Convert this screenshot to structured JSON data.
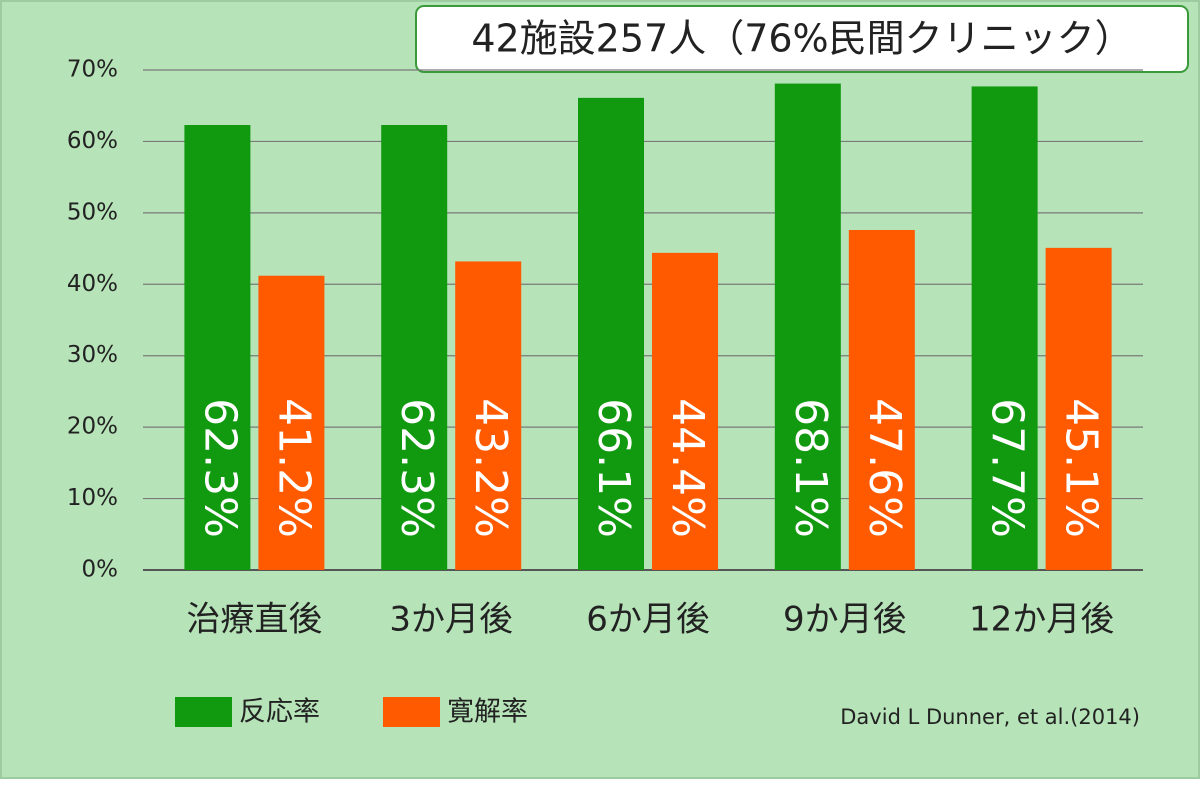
{
  "chart_data": {
    "type": "bar",
    "title": "42施設257人（76%民間クリニック）",
    "categories": [
      "治療直後",
      "3か月後",
      "6か月後",
      "9か月後",
      "12か月後"
    ],
    "series": [
      {
        "name": "反応率",
        "color": "#119a10",
        "values": [
          62.3,
          62.3,
          66.1,
          68.1,
          67.7
        ],
        "value_labels": [
          "62.3%",
          "62.3%",
          "66.1%",
          "68.1%",
          "67.7%"
        ]
      },
      {
        "name": "寛解率",
        "color": "#ff5a00",
        "values": [
          41.2,
          43.2,
          44.4,
          47.6,
          45.1
        ],
        "value_labels": [
          "41.2%",
          "43.2%",
          "44.4%",
          "47.6%",
          "45.1%"
        ]
      }
    ],
    "ylim": [
      0,
      70
    ],
    "yticks": [
      {
        "value": 0,
        "label": "0%"
      },
      {
        "value": 10,
        "label": "10%"
      },
      {
        "value": 20,
        "label": "20%"
      },
      {
        "value": 30,
        "label": "30%"
      },
      {
        "value": 40,
        "label": "40%"
      },
      {
        "value": 50,
        "label": "50%"
      },
      {
        "value": 60,
        "label": "60%"
      },
      {
        "value": 70,
        "label": "70%"
      }
    ],
    "grid": true,
    "source": "David L Dunner, et al.(2014)"
  }
}
